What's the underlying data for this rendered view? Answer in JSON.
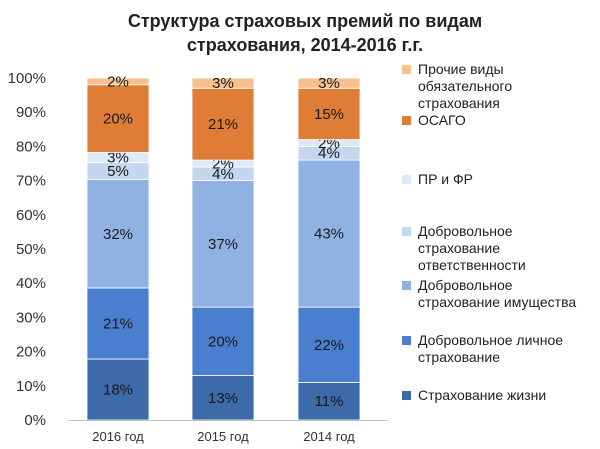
{
  "chart_data": {
    "type": "bar",
    "stacked": true,
    "title_lines": [
      "Структура страховых премий по видам",
      "страхования, 2014-2016 г.г."
    ],
    "categories": [
      "2016 год",
      "2015 год",
      "2014 год"
    ],
    "y_ticks": [
      "0%",
      "10%",
      "20%",
      "30%",
      "40%",
      "50%",
      "60%",
      "70%",
      "80%",
      "90%",
      "100%"
    ],
    "ylim": [
      0,
      100
    ],
    "grid": false,
    "legend_position": "right",
    "series": [
      {
        "name": "Страхование жизни",
        "color": "#3d6aa8",
        "values": [
          18,
          13,
          11
        ],
        "labels": [
          "18%",
          "13%",
          "11%"
        ]
      },
      {
        "name": "Добровольное личное страхование",
        "color": "#4a7fd0",
        "values": [
          21,
          20,
          22
        ],
        "labels": [
          "21%",
          "20%",
          "22%"
        ]
      },
      {
        "name": "Добровольное страхование имущества",
        "color": "#8fb2e3",
        "values": [
          32,
          37,
          43
        ],
        "labels": [
          "32%",
          "37%",
          "43%"
        ]
      },
      {
        "name": "Добровольное страхование ответственности",
        "color": "#c4d6f0",
        "values": [
          5,
          4,
          4
        ],
        "labels": [
          "5%",
          "4%",
          "4%"
        ]
      },
      {
        "name": "ПР и ФР",
        "color": "#dde9f7",
        "values": [
          3,
          2,
          2
        ],
        "labels": [
          "3%",
          "2%",
          "2%"
        ]
      },
      {
        "name": "ОСАГО",
        "color": "#df7d36",
        "values": [
          20,
          21,
          15
        ],
        "labels": [
          "20%",
          "21%",
          "15%"
        ]
      },
      {
        "name": "Прочие виды обязательного страхования",
        "color": "#f6c18f",
        "values": [
          2,
          3,
          3
        ],
        "labels": [
          "2%",
          "3%",
          "3%"
        ]
      }
    ],
    "legend": [
      {
        "series": 6,
        "lines": [
          "Прочие виды",
          "обязательного",
          "страхования"
        ]
      },
      {
        "series": 5,
        "lines": [
          "ОСАГО"
        ]
      },
      {
        "series": 4,
        "lines": [
          "ПР и ФР"
        ]
      },
      {
        "series": 3,
        "lines": [
          "Добровольное",
          "страхование",
          "ответственности"
        ]
      },
      {
        "series": 2,
        "lines": [
          "Добровольное",
          "страхование имущества"
        ]
      },
      {
        "series": 1,
        "lines": [
          "Добровольное личное",
          "страхование"
        ]
      },
      {
        "series": 0,
        "lines": [
          "Страхование жизни"
        ]
      }
    ]
  }
}
